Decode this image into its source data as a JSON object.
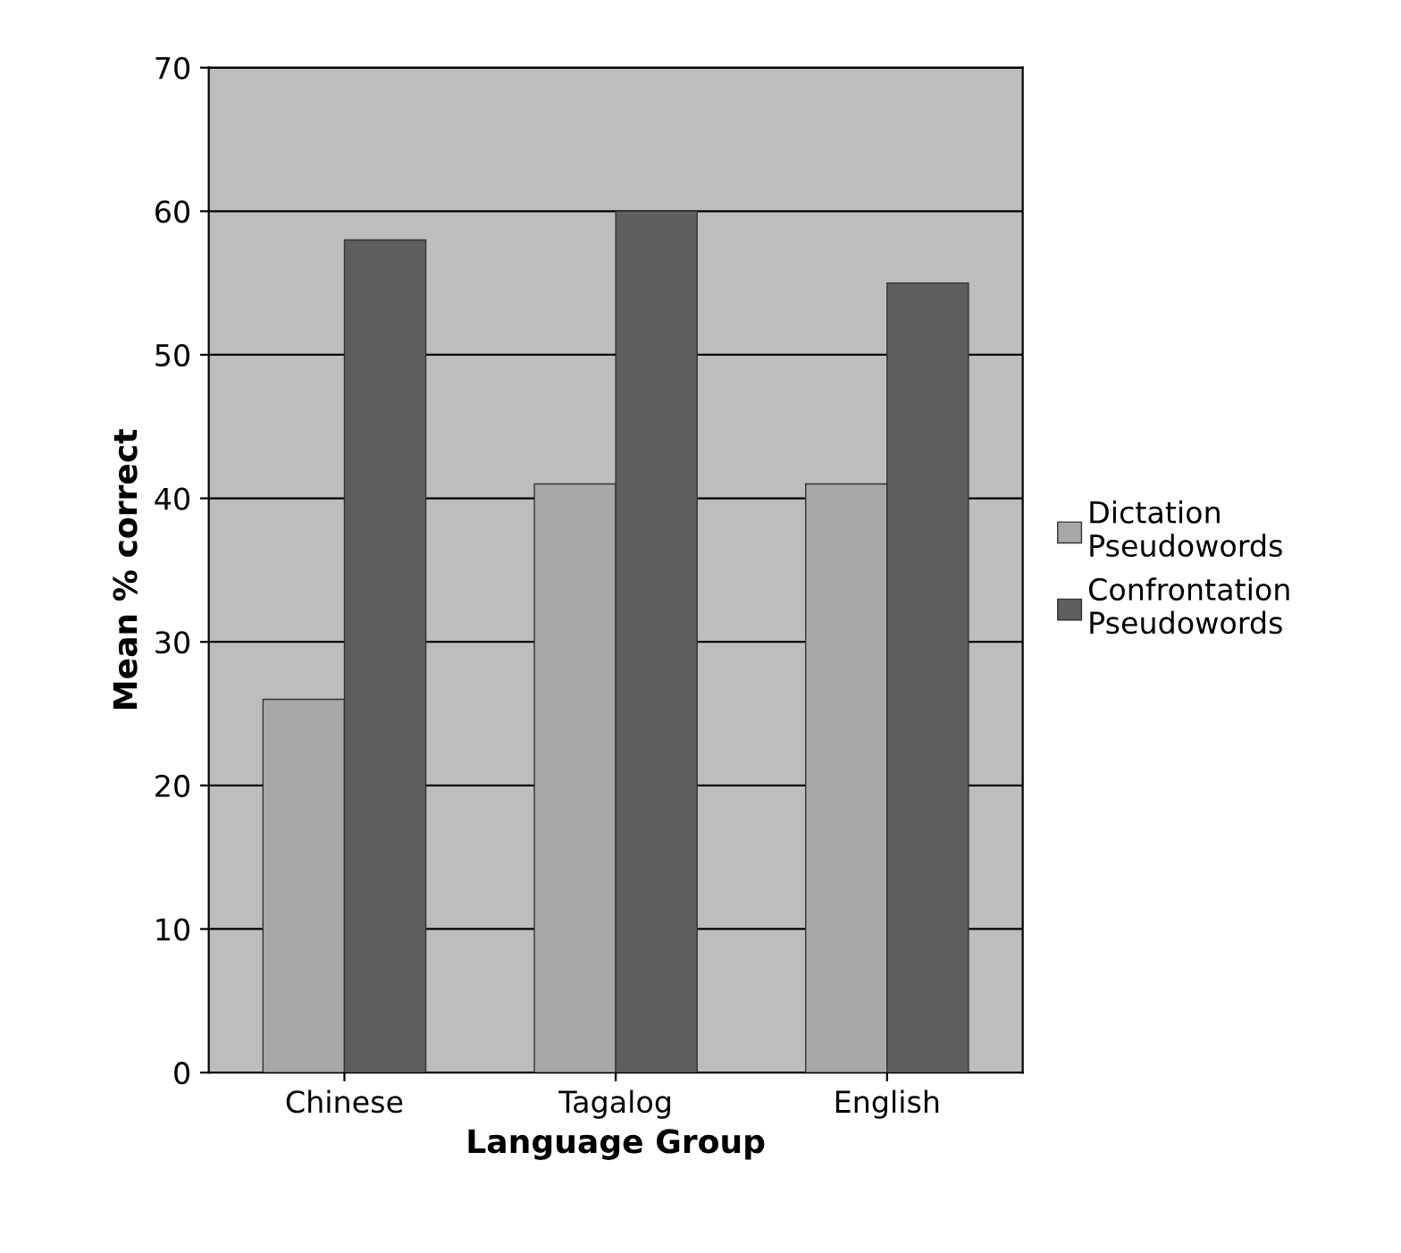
{
  "chart_data": {
    "type": "bar",
    "xlabel": "Language Group",
    "ylabel": "Mean % correct",
    "categories": [
      "Chinese",
      "Tagalog",
      "English"
    ],
    "series": [
      {
        "name": "Dictation\nPseudowords",
        "color": "#a8a8a8",
        "values": [
          26,
          41,
          41
        ]
      },
      {
        "name": "Confrontation\nPseudowords",
        "color": "#5e5e5e",
        "values": [
          58,
          60,
          55
        ]
      }
    ],
    "ylim": [
      0,
      70
    ],
    "yticks": [
      0,
      10,
      20,
      30,
      40,
      50,
      60,
      70
    ],
    "grid": "y",
    "legend": "right"
  }
}
